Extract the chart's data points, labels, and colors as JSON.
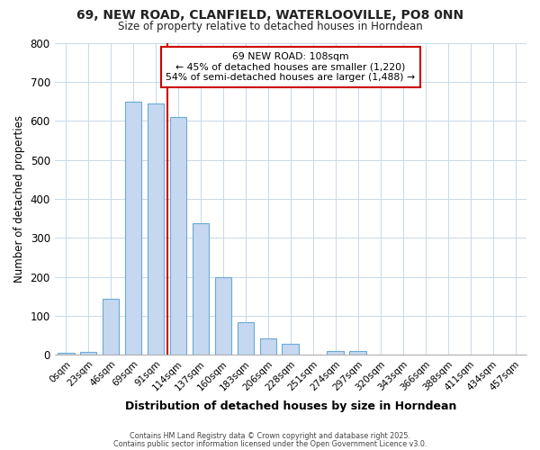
{
  "title_line1": "69, NEW ROAD, CLANFIELD, WATERLOOVILLE, PO8 0NN",
  "title_line2": "Size of property relative to detached houses in Horndean",
  "xlabel": "Distribution of detached houses by size in Horndean",
  "ylabel": "Number of detached properties",
  "bar_labels": [
    "0sqm",
    "23sqm",
    "46sqm",
    "69sqm",
    "91sqm",
    "114sqm",
    "137sqm",
    "160sqm",
    "183sqm",
    "206sqm",
    "228sqm",
    "251sqm",
    "274sqm",
    "297sqm",
    "320sqm",
    "343sqm",
    "366sqm",
    "388sqm",
    "411sqm",
    "434sqm",
    "457sqm"
  ],
  "bar_values": [
    5,
    7,
    143,
    648,
    645,
    610,
    338,
    200,
    83,
    42,
    28,
    0,
    10,
    10,
    0,
    0,
    0,
    0,
    0,
    0,
    2
  ],
  "bar_color": "#c5d8f0",
  "bar_edge_color": "#6aaad4",
  "grid_color": "#c8d8e8",
  "background_color": "#ffffff",
  "fig_background_color": "#ffffff",
  "vline_x_index": 4.5,
  "vline_color": "#cc0000",
  "annotation_text": "69 NEW ROAD: 108sqm\n← 45% of detached houses are smaller (1,220)\n54% of semi-detached houses are larger (1,488) →",
  "annotation_box_color": "#cc0000",
  "ylim": [
    0,
    800
  ],
  "yticks": [
    0,
    100,
    200,
    300,
    400,
    500,
    600,
    700,
    800
  ],
  "footer_line1": "Contains HM Land Registry data © Crown copyright and database right 2025.",
  "footer_line2": "Contains public sector information licensed under the Open Government Licence v3.0."
}
